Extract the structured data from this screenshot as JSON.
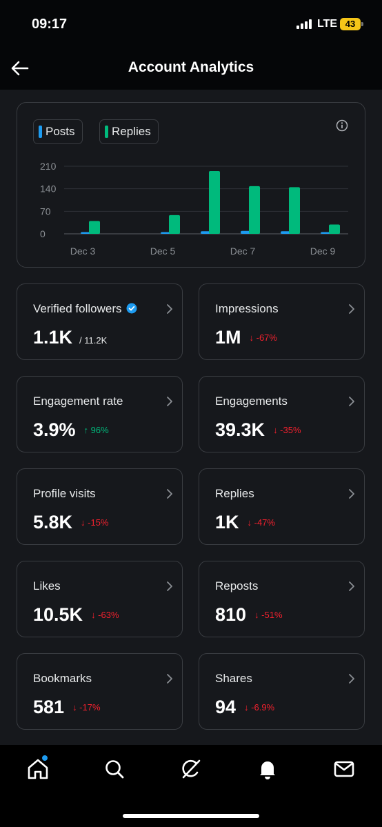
{
  "status_bar": {
    "time": "09:17",
    "network": "LTE",
    "battery": "43"
  },
  "header": {
    "title": "Account Analytics"
  },
  "chart_data": {
    "type": "bar",
    "categories": [
      "Dec 3",
      "Dec 4",
      "Dec 5",
      "Dec 6",
      "Dec 7",
      "Dec 8",
      "Dec 9"
    ],
    "x_tick_labels": [
      "Dec 3",
      "Dec 5",
      "Dec 7",
      "Dec 9"
    ],
    "y_ticks": [
      "210",
      "140",
      "70",
      "0"
    ],
    "ylim": [
      0,
      210
    ],
    "grid": true,
    "legend_position": "top-left",
    "series": [
      {
        "name": "Posts",
        "color": "#1d9bf0",
        "values": [
          1,
          0,
          4,
          8,
          9,
          8,
          5
        ]
      },
      {
        "name": "Replies",
        "color": "#00ba7c",
        "values": [
          40,
          0,
          58,
          195,
          148,
          145,
          29
        ]
      }
    ]
  },
  "metrics": [
    {
      "label": "Verified followers",
      "value": "1.1K",
      "sub": "/ 11.2K",
      "verified": true
    },
    {
      "label": "Impressions",
      "value": "1M",
      "change": "↓ -67%",
      "direction": "down"
    },
    {
      "label": "Engagement rate",
      "value": "3.9%",
      "change": "↑ 96%",
      "direction": "up"
    },
    {
      "label": "Engagements",
      "value": "39.3K",
      "change": "↓ -35%",
      "direction": "down"
    },
    {
      "label": "Profile visits",
      "value": "5.8K",
      "change": "↓ -15%",
      "direction": "down"
    },
    {
      "label": "Replies",
      "value": "1K",
      "change": "↓ -47%",
      "direction": "down"
    },
    {
      "label": "Likes",
      "value": "10.5K",
      "change": "↓ -63%",
      "direction": "down"
    },
    {
      "label": "Reposts",
      "value": "810",
      "change": "↓ -51%",
      "direction": "down"
    },
    {
      "label": "Bookmarks",
      "value": "581",
      "change": "↓ -17%",
      "direction": "down"
    },
    {
      "label": "Shares",
      "value": "94",
      "change": "↓ -6.9%",
      "direction": "down"
    }
  ],
  "nav": {
    "items": [
      "home-icon",
      "search-icon",
      "grok-icon",
      "notifications-icon",
      "messages-icon"
    ],
    "home_has_badge": true
  },
  "colors": {
    "accent": "#1d9bf0",
    "positive": "#00ba7c",
    "negative": "#f4212e"
  }
}
